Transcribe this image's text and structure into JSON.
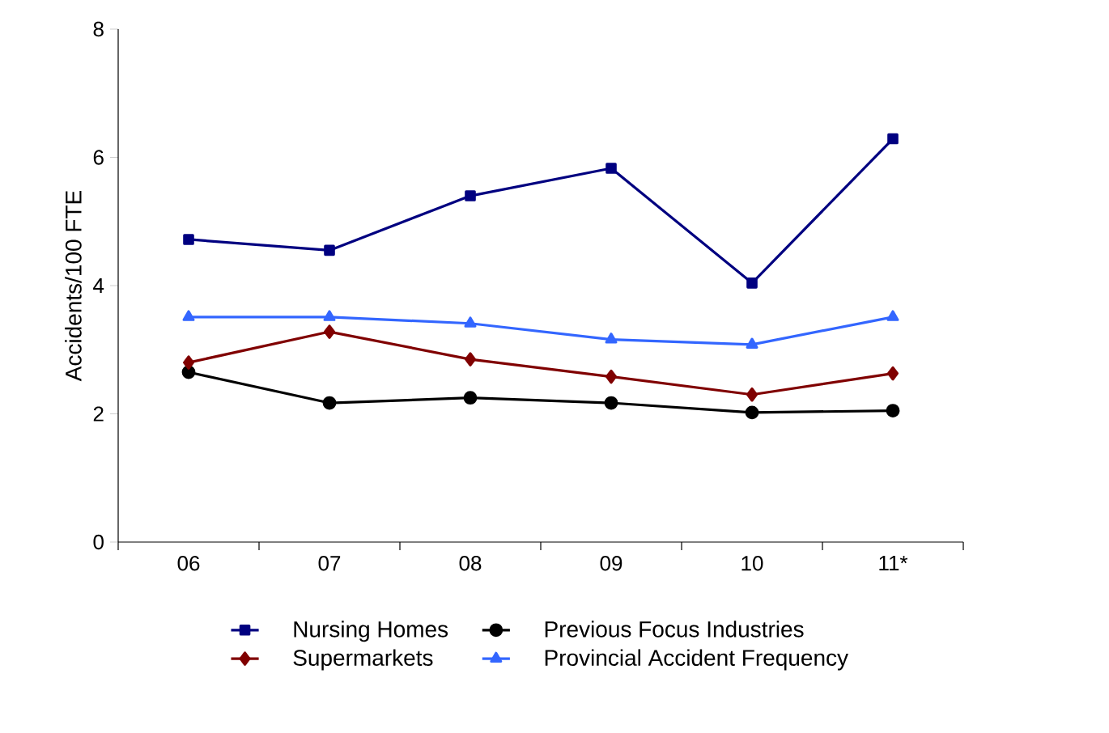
{
  "chart_data": {
    "type": "line",
    "ylabel": "Accidents/100 FTE",
    "categories": [
      "06",
      "07",
      "08",
      "09",
      "10",
      "11*"
    ],
    "ylim": [
      0,
      8
    ],
    "yticks": [
      0,
      2,
      4,
      6,
      8
    ],
    "grid": false,
    "legend": "bottom",
    "series": [
      {
        "name": "Nursing Homes",
        "color": "#000080",
        "marker": "square",
        "values": [
          4.72,
          4.55,
          5.4,
          5.83,
          4.04,
          6.29
        ]
      },
      {
        "name": "Previous Focus Industries",
        "color": "#000000",
        "marker": "circle",
        "values": [
          2.65,
          2.17,
          2.25,
          2.17,
          2.02,
          2.05
        ]
      },
      {
        "name": "Supermarkets",
        "color": "#800000",
        "marker": "diamond",
        "values": [
          2.8,
          3.28,
          2.85,
          2.58,
          2.3,
          2.63
        ]
      },
      {
        "name": "Provincial Accident Frequency",
        "color": "#3366ff",
        "marker": "triangle",
        "values": [
          3.51,
          3.51,
          3.41,
          3.16,
          3.08,
          3.51
        ]
      }
    ]
  }
}
